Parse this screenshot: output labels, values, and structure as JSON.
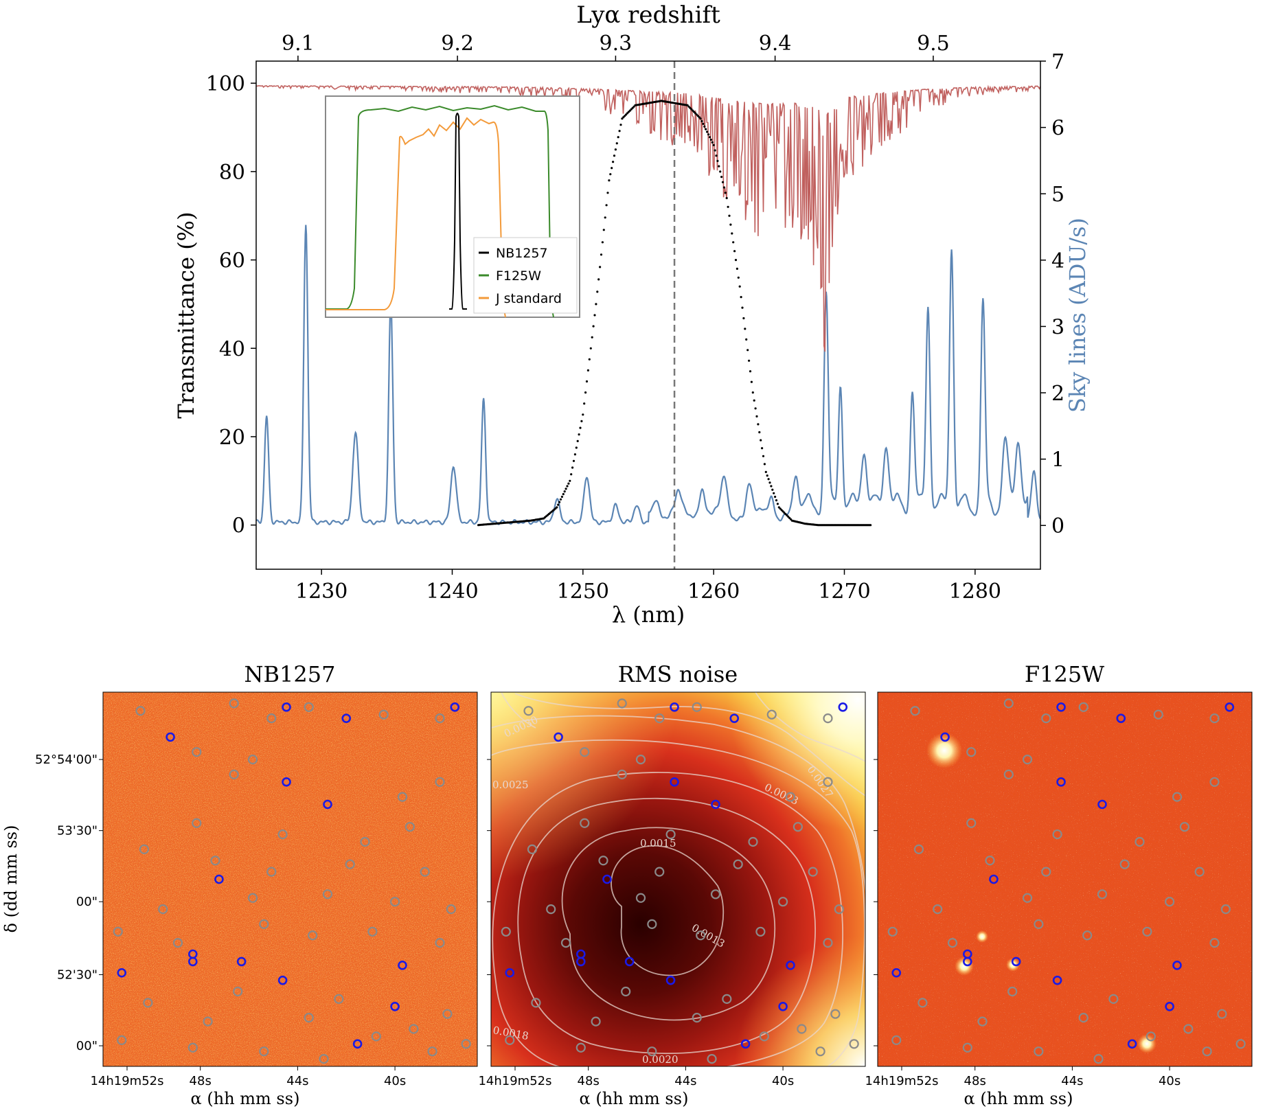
{
  "chart_data": [
    {
      "type": "line",
      "xlabel": "λ (nm)",
      "ylabel_left": "Transmittance (%)",
      "ylabel_right": "Sky lines (ADU/s)",
      "xlabel_top": "Lyα  redshift",
      "xlim": [
        1225,
        1285
      ],
      "ylim_left": [
        -10,
        105
      ],
      "ylim_right": [
        -0.66,
        7
      ],
      "xticks": [
        "1230",
        "1240",
        "1250",
        "1260",
        "1270",
        "1280"
      ],
      "yticks_left": [
        "0",
        "20",
        "40",
        "60",
        "80",
        "100"
      ],
      "yticks_right": [
        "0",
        "1",
        "2",
        "3",
        "4",
        "5",
        "6",
        "7"
      ],
      "xticks_top": [
        "9.1",
        "9.2",
        "9.3",
        "9.4",
        "9.5"
      ],
      "xticks_top_wavelength_nm": [
        1228.2,
        1240.4,
        1252.5,
        1264.7,
        1276.8
      ],
      "vline_x": 1257,
      "series": [
        {
          "name": "NB1257",
          "color": "#000000",
          "style": "dotted",
          "x": [
            1242,
            1244,
            1246,
            1247,
            1248,
            1249,
            1250,
            1251,
            1252,
            1253,
            1254,
            1256,
            1258,
            1259,
            1260,
            1261,
            1262,
            1263,
            1264,
            1265,
            1266,
            1267,
            1268,
            1270,
            1272
          ],
          "y": [
            0,
            0.5,
            1,
            1.5,
            4,
            10,
            25,
            50,
            78,
            92,
            95,
            96,
            95,
            92,
            86,
            74,
            54,
            30,
            12,
            4,
            1,
            0.3,
            0,
            0,
            0
          ]
        },
        {
          "name": "sky_transmission",
          "color": "#c0605e",
          "x": [
            1225,
            1232,
            1238,
            1243,
            1247,
            1250,
            1254,
            1258,
            1260,
            1262,
            1264,
            1266,
            1268,
            1268.5,
            1269,
            1270,
            1273,
            1276,
            1280,
            1285
          ],
          "y": [
            99.5,
            99,
            98.5,
            98,
            97,
            95,
            92,
            88,
            82,
            76,
            72,
            74,
            66,
            48,
            70,
            82,
            89,
            94,
            97.5,
            99
          ]
        },
        {
          "name": "sky_lines",
          "color": "#5b85b4",
          "axis": "right",
          "x": [
            1225.8,
            1228.8,
            1232.6,
            1235.3,
            1240.1,
            1242.4,
            1248,
            1250.3,
            1252.5,
            1254.1,
            1255.6,
            1257.3,
            1259.1,
            1260.8,
            1262.7,
            1264.4,
            1266.3,
            1268.6,
            1269.7,
            1271.5,
            1273.2,
            1275.2,
            1276.4,
            1278.2,
            1280.6,
            1282.3,
            1283.3,
            1284.5
          ],
          "y": [
            1.6,
            4.5,
            1.35,
            3.3,
            0.85,
            1.85,
            0.35,
            0.7,
            0.25,
            0.25,
            0.3,
            0.3,
            0.45,
            0.55,
            0.45,
            0.3,
            0.55,
            3.2,
            1.9,
            0.9,
            1.0,
            1.8,
            3.1,
            4.0,
            3.05,
            0.95,
            1.1,
            0.75
          ]
        }
      ],
      "inset": {
        "legend": [
          "NB1257",
          "F125W",
          "J standard"
        ],
        "colors": [
          "#000000",
          "#3a8a2a",
          "#f39a3a"
        ]
      }
    },
    {
      "type": "heatmap",
      "title": "NB1257",
      "xlabel": "α (hh mm ss)",
      "ylabel": "δ (dd mm ss)",
      "xticks": [
        "14h19m52s",
        "48s",
        "44s",
        "40s"
      ],
      "yticks": [
        "52°54'00\"",
        "53'30\"",
        "00\"",
        "52'30\"",
        "00\""
      ]
    },
    {
      "type": "heatmap",
      "title": "RMS noise",
      "xlabel": "α (hh mm ss)",
      "xticks": [
        "14h19m52s",
        "48s",
        "44s",
        "40s"
      ],
      "contour_levels": [
        "0.0013",
        "0.0015",
        "0.0018",
        "0.0020",
        "0.0023",
        "0.0025",
        "0.0027",
        "0.0030"
      ]
    },
    {
      "type": "heatmap",
      "title": "F125W",
      "xlabel": "α (hh mm ss)",
      "xticks": [
        "14h19m52s",
        "48s",
        "44s",
        "40s"
      ]
    }
  ],
  "markers": {
    "blue": [
      [
        0.18,
        0.88
      ],
      [
        0.49,
        0.96
      ],
      [
        0.65,
        0.93
      ],
      [
        0.49,
        0.76
      ],
      [
        0.6,
        0.7
      ],
      [
        0.31,
        0.5
      ],
      [
        0.24,
        0.28
      ],
      [
        0.24,
        0.3
      ],
      [
        0.37,
        0.28
      ],
      [
        0.05,
        0.25
      ],
      [
        0.48,
        0.23
      ],
      [
        0.8,
        0.27
      ],
      [
        0.78,
        0.16
      ],
      [
        0.68,
        0.06
      ],
      [
        0.94,
        0.96
      ]
    ],
    "gray": [
      [
        0.1,
        0.95
      ],
      [
        0.35,
        0.97
      ],
      [
        0.45,
        0.93
      ],
      [
        0.55,
        0.96
      ],
      [
        0.75,
        0.94
      ],
      [
        0.9,
        0.93
      ],
      [
        0.25,
        0.84
      ],
      [
        0.4,
        0.82
      ],
      [
        0.35,
        0.78
      ],
      [
        0.8,
        0.72
      ],
      [
        0.9,
        0.76
      ],
      [
        0.25,
        0.65
      ],
      [
        0.48,
        0.62
      ],
      [
        0.7,
        0.6
      ],
      [
        0.82,
        0.64
      ],
      [
        0.11,
        0.58
      ],
      [
        0.3,
        0.55
      ],
      [
        0.45,
        0.52
      ],
      [
        0.66,
        0.54
      ],
      [
        0.86,
        0.52
      ],
      [
        0.16,
        0.42
      ],
      [
        0.4,
        0.45
      ],
      [
        0.6,
        0.46
      ],
      [
        0.78,
        0.44
      ],
      [
        0.93,
        0.42
      ],
      [
        0.04,
        0.36
      ],
      [
        0.2,
        0.33
      ],
      [
        0.43,
        0.38
      ],
      [
        0.56,
        0.35
      ],
      [
        0.72,
        0.36
      ],
      [
        0.9,
        0.33
      ],
      [
        0.12,
        0.17
      ],
      [
        0.28,
        0.12
      ],
      [
        0.36,
        0.2
      ],
      [
        0.55,
        0.13
      ],
      [
        0.63,
        0.18
      ],
      [
        0.73,
        0.08
      ],
      [
        0.83,
        0.1
      ],
      [
        0.92,
        0.14
      ],
      [
        0.97,
        0.06
      ],
      [
        0.05,
        0.07
      ],
      [
        0.24,
        0.05
      ],
      [
        0.43,
        0.04
      ],
      [
        0.59,
        0.02
      ],
      [
        0.88,
        0.04
      ]
    ]
  }
}
